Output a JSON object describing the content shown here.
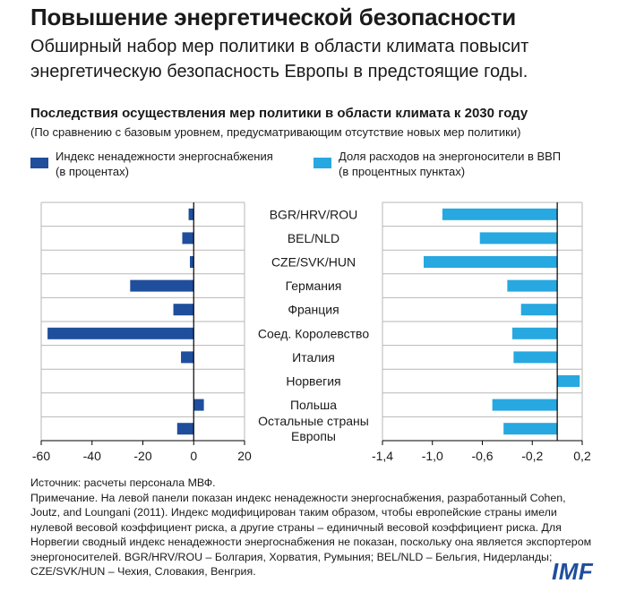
{
  "header": {
    "title": "Повышение энергетической безопасности",
    "subtitle": "Обширный набор мер политики в области климата повысит энергетическую безопасность Европы в предстоящие годы."
  },
  "chart_header": {
    "title": "Последствия осуществления мер политики в области климата к 2030 году",
    "subtitle": "(По сравнению с базовым уровнем, предусматривающим отсутствие новых мер политики)"
  },
  "legend": {
    "left_line1": "Индекс ненадежности энергоснабжения",
    "left_line2": "(в процентах)",
    "right_line1": "Доля расходов на энергоносители в ВВП",
    "right_line2": "(в процентных пунктах)"
  },
  "colors": {
    "left_series": "#1f4e9c",
    "right_series": "#27a8e0",
    "grid": "#b7b7b7"
  },
  "chart_data": [
    {
      "type": "bar",
      "orientation": "horizontal",
      "series": [
        {
          "name": "Индекс ненадежности энергоснабжения (в процентах)",
          "values": [
            -2,
            -4.5,
            -1.5,
            -25,
            -8,
            -57.5,
            -5,
            null,
            4,
            -6.5
          ]
        }
      ],
      "categories": [
        "BGR/HRV/ROU",
        "BEL/NLD",
        "CZE/SVK/HUN",
        "Германия",
        "Франция",
        "Соед. Королевство",
        "Италия",
        "Норвегия",
        "Польша",
        "Остальные страны Европы"
      ],
      "xlim": [
        -60,
        20
      ],
      "xticks": [
        "-60",
        "-40",
        "-20",
        "0",
        "20"
      ],
      "xtick_values": [
        -60,
        -40,
        -20,
        0,
        20
      ]
    },
    {
      "type": "bar",
      "orientation": "horizontal",
      "series": [
        {
          "name": "Доля расходов на энергоносители в ВВП (в процентных пунктах)",
          "values": [
            -0.92,
            -0.62,
            -1.07,
            -0.4,
            -0.29,
            -0.36,
            -0.35,
            0.18,
            -0.52,
            -0.43
          ]
        }
      ],
      "categories": [
        "BGR/HRV/ROU",
        "BEL/NLD",
        "CZE/SVK/HUN",
        "Германия",
        "Франция",
        "Соед. Королевство",
        "Италия",
        "Норвегия",
        "Польша",
        "Остальные страны Европы"
      ],
      "xlim": [
        -1.4,
        0.2
      ],
      "xticks": [
        "-1,4",
        "-1,0",
        "-0,6",
        "-0,2",
        "0,2"
      ],
      "xtick_values": [
        -1.4,
        -1.0,
        -0.6,
        -0.2,
        0.2
      ]
    }
  ],
  "category_labels": [
    [
      "BGR/HRV/ROU"
    ],
    [
      "BEL/NLD"
    ],
    [
      "CZE/SVK/HUN"
    ],
    [
      "Германия"
    ],
    [
      "Франция"
    ],
    [
      "Соед. Королевство"
    ],
    [
      "Италия"
    ],
    [
      "Норвегия"
    ],
    [
      "Польша"
    ],
    [
      "Остальные страны",
      "Европы"
    ]
  ],
  "notes": {
    "source": "Источник: расчеты персонала МВФ.",
    "note": "Примечание. На левой панели показан индекс ненадежности энергоснабжения, разработанный Cohen, Joutz, and Loungani (2011). Индекс модифицирован таким образом, чтобы европейские страны имели нулевой весовой коэффициент риска, а другие страны – единичный весовой коэффициент риска. Для Норвегии сводный индекс ненадежности энергоснабжения не показан, поскольку она является экспортером энергоносителей. BGR/HRV/ROU – Болгария, Хорватия, Румыния; BEL/NLD – Бельгия, Нидерланды; CZE/SVK/HUN – Чехия, Словакия, Венгрия."
  },
  "logo": "IMF"
}
